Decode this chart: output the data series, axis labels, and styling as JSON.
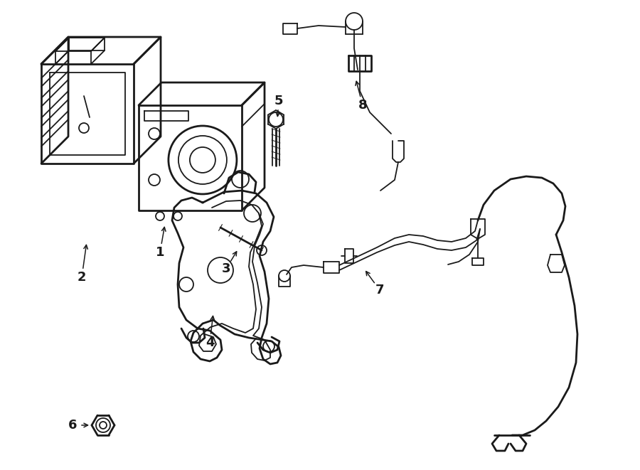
{
  "bg_color": "#ffffff",
  "line_color": "#1a1a1a",
  "lw": 1.3,
  "lw2": 2.0,
  "fig_width": 9.0,
  "fig_height": 6.61,
  "dpi": 100
}
